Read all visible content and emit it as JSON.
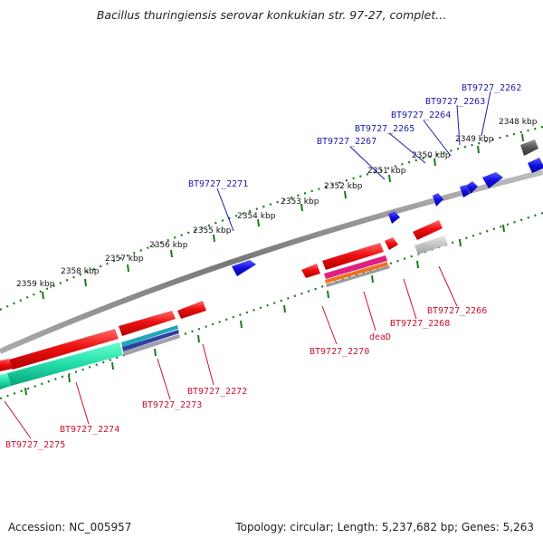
{
  "title": "Bacillus thuringiensis serovar konkukian str. 97-27, complet...",
  "footer": {
    "accession": "Accession: NC_005957",
    "topology": "Topology: circular; Length: 5,237,682 bp; Genes: 5,263"
  },
  "colors": {
    "forward_gene": "#1010e0",
    "reverse_gene": "#ee1010",
    "backbone": "#888888",
    "tick": "#1a7a1a",
    "label_forward": "#1a1aa8",
    "label_reverse": "#c8102e"
  },
  "scale_labels": [
    "2348 kbp",
    "2349 kbp",
    "2350 kbp",
    "2351 kbp",
    "2352 kbp",
    "2353 kbp",
    "2354 kbp",
    "2355 kbp",
    "2356 kbp",
    "2357 kbp",
    "2358 kbp",
    "2359 kbp"
  ],
  "forward_labels": [
    "BT9727_2262",
    "BT9727_2263",
    "BT9727_2264",
    "BT9727_2265",
    "BT9727_2267",
    "BT9727_2271"
  ],
  "reverse_labels": [
    "BT9727_2266",
    "BT9727_2268",
    "deaD",
    "BT9727_2270",
    "BT9727_2272",
    "BT9727_2273",
    "BT9727_2274",
    "BT9727_2275"
  ]
}
